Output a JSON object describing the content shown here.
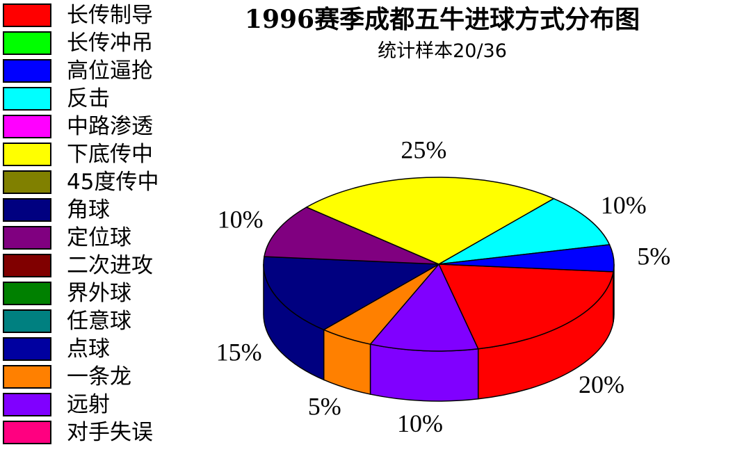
{
  "title": "1996赛季成都五牛进球方式分布图",
  "subtitle": "统计样本20/36",
  "legend": [
    {
      "label": "长传制导",
      "color": "#ff0000"
    },
    {
      "label": "长传冲吊",
      "color": "#00ff00"
    },
    {
      "label": "高位逼抢",
      "color": "#0000ff"
    },
    {
      "label": "反击",
      "color": "#00ffff"
    },
    {
      "label": "中路渗透",
      "color": "#ff00ff"
    },
    {
      "label": "下底传中",
      "color": "#ffff00"
    },
    {
      "label": "45度传中",
      "color": "#808000"
    },
    {
      "label": "角球",
      "color": "#000080"
    },
    {
      "label": "定位球",
      "color": "#800080"
    },
    {
      "label": "二次进攻",
      "color": "#800000"
    },
    {
      "label": "界外球",
      "color": "#008000"
    },
    {
      "label": "任意球",
      "color": "#008080"
    },
    {
      "label": "点球",
      "color": "#0000a0"
    },
    {
      "label": "一条龙",
      "color": "#ff8000"
    },
    {
      "label": "远射",
      "color": "#8000ff"
    },
    {
      "label": "对手失误",
      "color": "#ff0080"
    }
  ],
  "chart_data": {
    "type": "pie",
    "title": "1996赛季成都五牛进球方式分布图",
    "subtitle": "统计样本20/36",
    "style": "3d",
    "slices": [
      {
        "category": "长传制导",
        "value": 20,
        "label": "20%",
        "color": "#ff0000"
      },
      {
        "category": "远射",
        "value": 10,
        "label": "10%",
        "color": "#8000ff"
      },
      {
        "category": "一条龙",
        "value": 5,
        "label": "5%",
        "color": "#ff8000"
      },
      {
        "category": "角球",
        "value": 15,
        "label": "15%",
        "color": "#000080"
      },
      {
        "category": "定位球",
        "value": 10,
        "label": "10%",
        "color": "#800080"
      },
      {
        "category": "下底传中",
        "value": 25,
        "label": "25%",
        "color": "#ffff00"
      },
      {
        "category": "反击",
        "value": 10,
        "label": "10%",
        "color": "#00ffff"
      },
      {
        "category": "高位逼抢",
        "value": 5,
        "label": "5%",
        "color": "#0000ff"
      }
    ]
  }
}
